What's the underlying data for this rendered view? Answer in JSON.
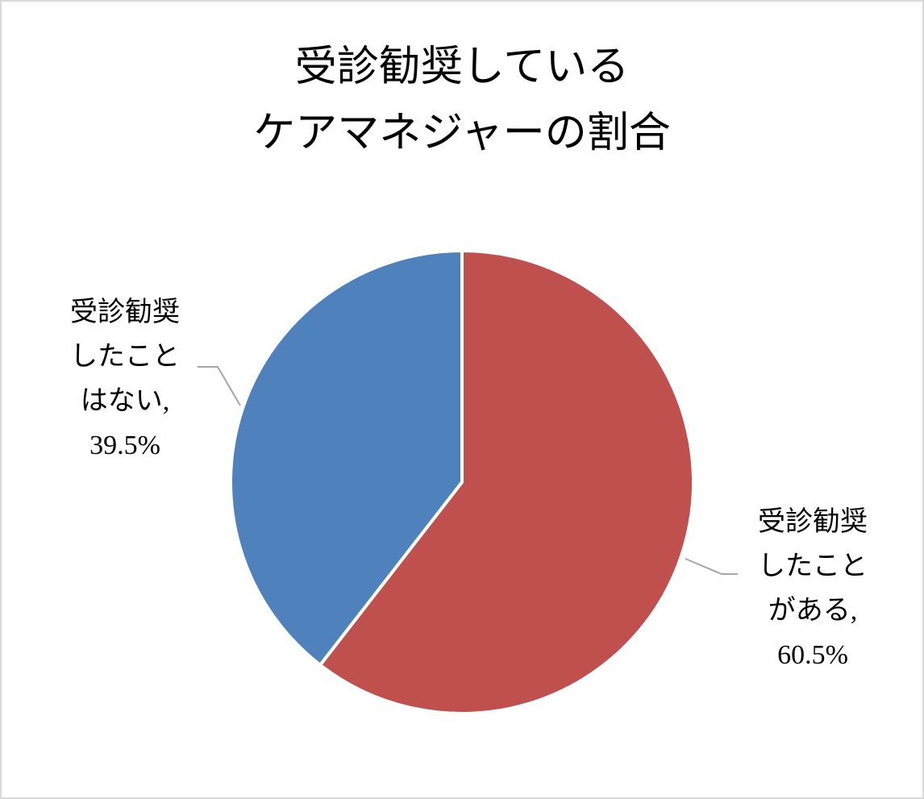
{
  "chart_data": {
    "type": "pie",
    "title": [
      "受診勧奨している",
      "ケアマネジャーの割合"
    ],
    "categories": [
      "受診勧奨したことがある",
      "受診勧奨したことはない"
    ],
    "values": [
      60.5,
      39.5
    ],
    "value_labels": [
      "60.5%",
      "39.5%"
    ],
    "label_separator": ",",
    "colors": [
      "#c0504d",
      "#4f81bd"
    ]
  }
}
